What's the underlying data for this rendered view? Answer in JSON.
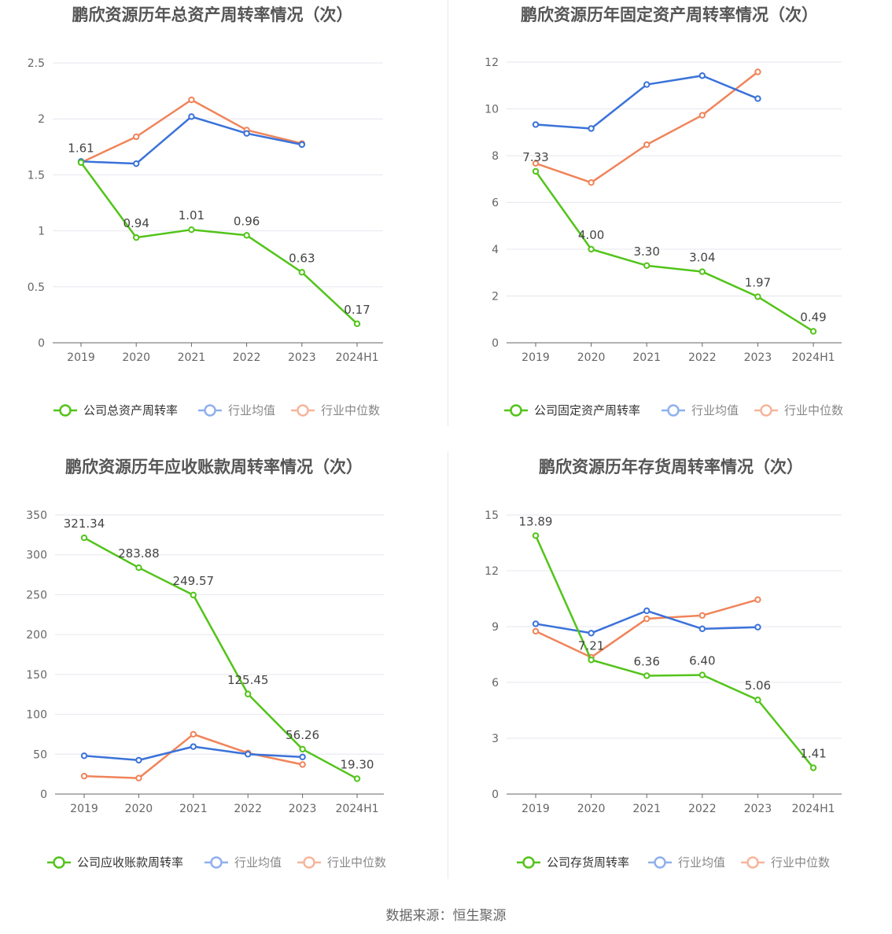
{
  "source": "数据来源：恒生聚源",
  "colors": {
    "company": "#52c41a",
    "avg": "#3a72d9",
    "median": "#f0845a",
    "axis": "#666666",
    "grid": "#e6e6ef",
    "label": "#444444",
    "title": "#555555"
  },
  "chart_data": [
    {
      "type": "line",
      "title": "鹏欣资源历年总资产周转率情况（次）",
      "categories": [
        "2019",
        "2020",
        "2021",
        "2022",
        "2023",
        "2024H1"
      ],
      "ylim": [
        0,
        2.5
      ],
      "yticks": [
        "0",
        "0.5",
        "1",
        "1.5",
        "2",
        "2.5"
      ],
      "ytick_values": [
        0,
        0.5,
        1,
        1.5,
        2,
        2.5
      ],
      "series": [
        {
          "name": "公司总资产周转率",
          "values": [
            1.61,
            0.94,
            1.01,
            0.96,
            0.63,
            0.17
          ],
          "labels": [
            "1.61",
            "0.94",
            "1.01",
            "0.96",
            "0.63",
            "0.17"
          ]
        },
        {
          "name": "行业均值",
          "values": [
            1.62,
            1.6,
            2.02,
            1.87,
            1.77,
            null
          ]
        },
        {
          "name": "行业中位数",
          "values": [
            1.61,
            1.84,
            2.17,
            1.9,
            1.78,
            null
          ]
        }
      ],
      "legend": "bottom"
    },
    {
      "type": "line",
      "title": "鹏欣资源历年固定资产周转率情况（次）",
      "categories": [
        "2019",
        "2020",
        "2021",
        "2022",
        "2023",
        "2024H1"
      ],
      "ylim": [
        0,
        12
      ],
      "yticks": [
        "0",
        "2",
        "4",
        "6",
        "8",
        "10",
        "12"
      ],
      "ytick_values": [
        0,
        2,
        4,
        6,
        8,
        10,
        12
      ],
      "series": [
        {
          "name": "公司固定资产周转率",
          "values": [
            7.33,
            4.0,
            3.3,
            3.04,
            1.97,
            0.49
          ],
          "labels": [
            "7.33",
            "4.00",
            "3.30",
            "3.04",
            "1.97",
            "0.49"
          ]
        },
        {
          "name": "行业均值",
          "values": [
            9.33,
            9.16,
            11.04,
            11.42,
            10.44,
            null
          ]
        },
        {
          "name": "行业中位数",
          "values": [
            7.67,
            6.85,
            8.47,
            9.73,
            11.58,
            null
          ]
        }
      ],
      "legend": "bottom"
    },
    {
      "type": "line",
      "title": "鹏欣资源历年应收账款周转率情况（次）",
      "categories": [
        "2019",
        "2020",
        "2021",
        "2022",
        "2023",
        "2024H1"
      ],
      "ylim": [
        0,
        350
      ],
      "yticks": [
        "0",
        "50",
        "100",
        "150",
        "200",
        "250",
        "300",
        "350"
      ],
      "ytick_values": [
        0,
        50,
        100,
        150,
        200,
        250,
        300,
        350
      ],
      "series": [
        {
          "name": "公司应收账款周转率",
          "values": [
            321.34,
            283.88,
            249.57,
            125.45,
            56.26,
            19.3
          ],
          "labels": [
            "321.34",
            "283.88",
            "249.57",
            "125.45",
            "56.26",
            "19.30"
          ]
        },
        {
          "name": "行业均值",
          "values": [
            48,
            42.5,
            59.5,
            50,
            46.5,
            null
          ]
        },
        {
          "name": "行业中位数",
          "values": [
            22.5,
            20,
            75,
            51.5,
            37,
            null
          ]
        }
      ],
      "legend": "bottom"
    },
    {
      "type": "line",
      "title": "鹏欣资源历年存货周转率情况（次）",
      "categories": [
        "2019",
        "2020",
        "2021",
        "2022",
        "2023",
        "2024H1"
      ],
      "ylim": [
        0,
        15
      ],
      "yticks": [
        "0",
        "3",
        "6",
        "9",
        "12",
        "15"
      ],
      "ytick_values": [
        0,
        3,
        6,
        9,
        12,
        15
      ],
      "series": [
        {
          "name": "公司存货周转率",
          "values": [
            13.89,
            7.21,
            6.36,
            6.4,
            5.06,
            1.41
          ],
          "labels": [
            "13.89",
            "7.21",
            "6.36",
            "6.40",
            "5.06",
            "1.41"
          ]
        },
        {
          "name": "行业均值",
          "values": [
            9.15,
            8.65,
            9.85,
            8.88,
            8.97,
            null
          ]
        },
        {
          "name": "行业中位数",
          "values": [
            8.75,
            7.35,
            9.42,
            9.6,
            10.45,
            null
          ]
        }
      ],
      "legend": "bottom"
    }
  ]
}
